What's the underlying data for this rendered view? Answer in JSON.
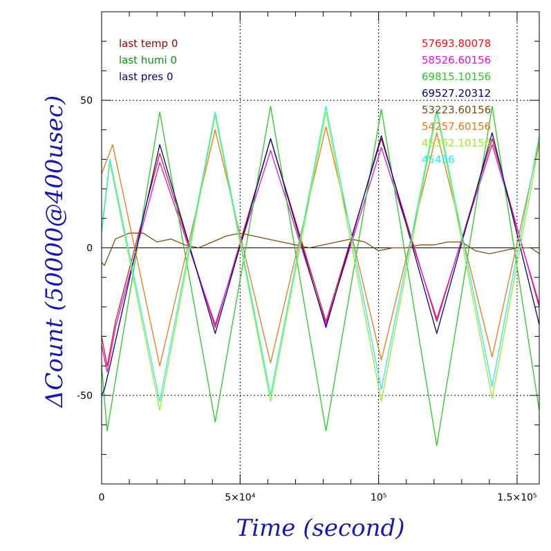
{
  "chart_data": {
    "type": "line",
    "xlabel": "Time (second)",
    "ylabel": "ΔCount (50000@400usec)",
    "xlim": [
      0,
      158000
    ],
    "ylim": [
      -80,
      80
    ],
    "x_ticks": [
      {
        "value": 0,
        "label": "0"
      },
      {
        "value": 50000,
        "label": "5×10⁴"
      },
      {
        "value": 100000,
        "label": "10⁵"
      },
      {
        "value": 150000,
        "label": "1.5×10⁵"
      }
    ],
    "y_ticks": [
      {
        "value": -50,
        "label": "-50"
      },
      {
        "value": 0,
        "label": "0"
      },
      {
        "value": 50,
        "label": "50"
      }
    ],
    "grid": "dotted at labeled ticks",
    "legend_top_left": [
      {
        "text": "last temp 0",
        "color": "#8b0000"
      },
      {
        "text": "last humi 0",
        "color": "#0f8f0f"
      },
      {
        "text": "last pres 0",
        "color": "#00008b"
      }
    ],
    "series": [
      {
        "name": "57693.80078",
        "color": "#ee1111",
        "x": [
          0,
          2000,
          5000,
          21000,
          41000,
          61000,
          81000,
          101000,
          121000,
          141000,
          158000
        ],
        "y": [
          -30,
          -40,
          -25,
          32,
          -27,
          37,
          -25,
          37,
          -25,
          37,
          -20
        ]
      },
      {
        "name": "58526.60156",
        "color": "#dd11dd",
        "x": [
          0,
          2000,
          5000,
          21000,
          41000,
          61000,
          81000,
          101000,
          121000,
          141000,
          158000
        ],
        "y": [
          -33,
          -42,
          -27,
          29,
          -26,
          33,
          -26,
          34,
          -24,
          35,
          -19
        ]
      },
      {
        "name": "69815.10156",
        "color": "#22cc22",
        "x": [
          0,
          2000,
          21000,
          41000,
          61000,
          81000,
          101000,
          121000,
          141000,
          158000
        ],
        "y": [
          -40,
          -62,
          46,
          -59,
          48,
          -62,
          47,
          -67,
          48,
          -55
        ]
      },
      {
        "name": "69527.20312",
        "color": "#00008b",
        "x": [
          0,
          1000,
          3000,
          21000,
          41000,
          61000,
          81000,
          101000,
          121000,
          141000,
          158000
        ],
        "y": [
          -50,
          -48,
          -40,
          35,
          -29,
          37,
          -27,
          38,
          -29,
          39,
          -26
        ]
      },
      {
        "name": "53223.60156",
        "color": "#7a4a10",
        "x": [
          0,
          1000,
          5000,
          10000,
          15000,
          20000,
          25000,
          30000,
          35000,
          40000,
          45000,
          50000,
          55000,
          60000,
          65000,
          70000,
          75000,
          80000,
          85000,
          90000,
          95000,
          100000,
          105000,
          110000,
          115000,
          120000,
          125000,
          130000,
          135000,
          140000,
          145000,
          150000,
          155000,
          158000
        ],
        "y": [
          -5,
          -6,
          3,
          5,
          5,
          2,
          3,
          1,
          0,
          2,
          4,
          5,
          4,
          3,
          2,
          1,
          0,
          1,
          2,
          3,
          2,
          -1,
          0,
          0,
          1,
          1,
          2,
          2,
          -1,
          -2,
          -1,
          0,
          0,
          -2
        ]
      },
      {
        "name": "54257.60156",
        "color": "#ee7711",
        "x": [
          0,
          4000,
          21000,
          41000,
          61000,
          81000,
          101000,
          121000,
          141000,
          158000
        ],
        "y": [
          25,
          35,
          -40,
          40,
          -39,
          41,
          -38,
          39,
          -37,
          36
        ]
      },
      {
        "name": "45362.10156",
        "color": "#99ee22",
        "x": [
          0,
          3000,
          21000,
          41000,
          61000,
          81000,
          101000,
          121000,
          141000,
          158000
        ],
        "y": [
          5,
          29,
          -55,
          45,
          -52,
          46,
          -52,
          46,
          -51,
          35
        ]
      },
      {
        "name": "45456",
        "color": "#22eeee",
        "x": [
          0,
          3000,
          21000,
          41000,
          61000,
          81000,
          101000,
          121000,
          141000,
          158000
        ],
        "y": [
          6,
          30,
          -52,
          46,
          -50,
          48,
          -48,
          47,
          -47,
          38
        ]
      }
    ]
  }
}
